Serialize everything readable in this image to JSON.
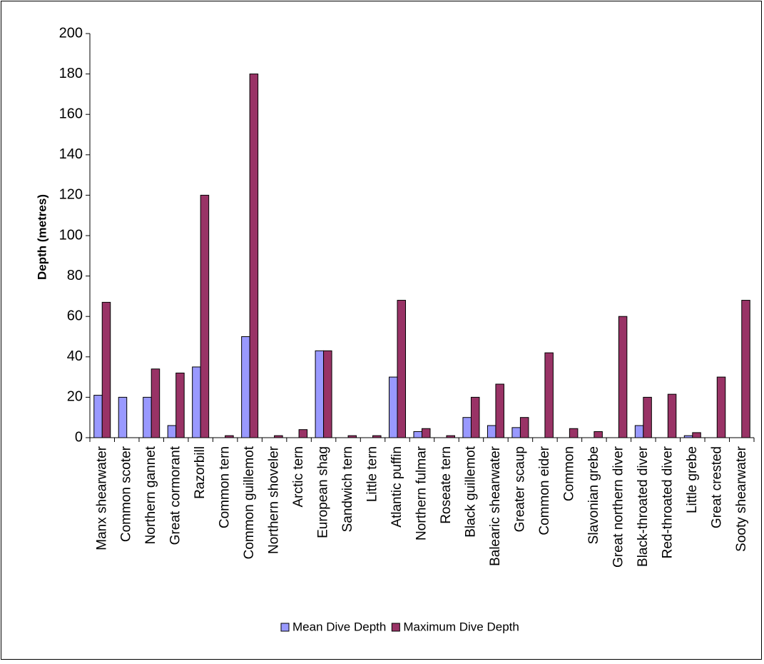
{
  "chart_data": {
    "type": "bar",
    "title": "",
    "xlabel": "",
    "ylabel": "Depth (metres)",
    "ylim": [
      0,
      200
    ],
    "yticks": [
      0,
      20,
      40,
      60,
      80,
      100,
      120,
      140,
      160,
      180,
      200
    ],
    "grid": false,
    "legend_position": "bottom",
    "categories": [
      "Manx shearwater",
      "Common scoter",
      "Northern gannet",
      "Great cormorant",
      "Razorbill",
      "Common tern",
      "Common guillemot",
      "Northern shoveler",
      "Arctic tern",
      "European shag",
      "Sandwich tern",
      "Little tern",
      "Atlantic puffin",
      "Northern fulmar",
      "Roseate tern",
      "Black guillemot",
      "Balearic shearwater",
      "Greater scaup",
      "Common eider",
      "Common",
      "Slavonian grebe",
      "Great northern diver",
      "Black-throated diver",
      "Red-throated diver",
      "Little grebe",
      "Great crested",
      "Sooty shearwater"
    ],
    "series": [
      {
        "name": "Mean Dive Depth",
        "color": "#9999ff",
        "values": [
          21,
          20,
          20,
          6,
          35,
          0,
          50,
          0,
          0,
          43,
          0,
          0,
          30,
          3,
          0,
          10,
          6,
          5,
          0,
          0,
          0,
          0,
          6,
          0,
          1,
          0,
          0
        ]
      },
      {
        "name": "Maximum Dive Depth",
        "color": "#993366",
        "values": [
          67,
          0,
          34,
          32,
          120,
          1,
          180,
          1,
          4,
          43,
          1,
          1,
          68,
          4.5,
          1,
          20,
          26.5,
          10,
          42,
          4.5,
          3,
          60,
          20,
          21.5,
          2.5,
          30,
          68
        ]
      }
    ]
  }
}
